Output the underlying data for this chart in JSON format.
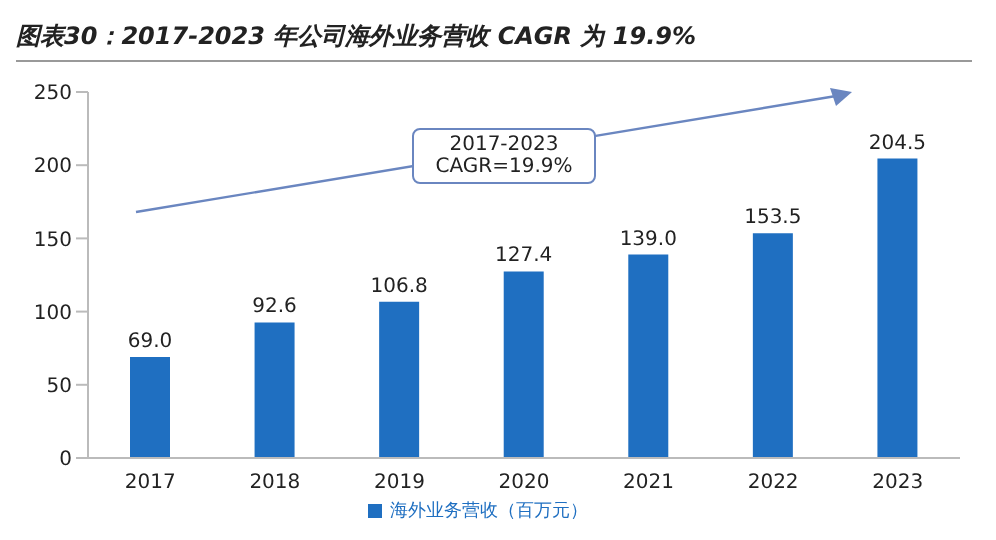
{
  "chart_data": {
    "type": "bar",
    "title": "图表30：2017-2023 年公司海外业务营收 CAGR 为 19.9%",
    "categories": [
      "2017",
      "2018",
      "2019",
      "2020",
      "2021",
      "2022",
      "2023"
    ],
    "series": [
      {
        "name": "海外业务营收（百万元）",
        "color": "#1f6fc1",
        "values": [
          69.0,
          92.6,
          106.8,
          127.4,
          139.0,
          153.5,
          204.5
        ]
      }
    ],
    "value_labels": [
      "69.0",
      "92.6",
      "106.8",
      "127.4",
      "139.0",
      "153.5",
      "204.5"
    ],
    "ylim": [
      0,
      250
    ],
    "yticks": [
      0,
      50,
      100,
      150,
      200,
      250
    ],
    "grid": false,
    "legend": "bottom",
    "annotations": [
      "2017-2023\nCAGR=19.9%"
    ]
  }
}
